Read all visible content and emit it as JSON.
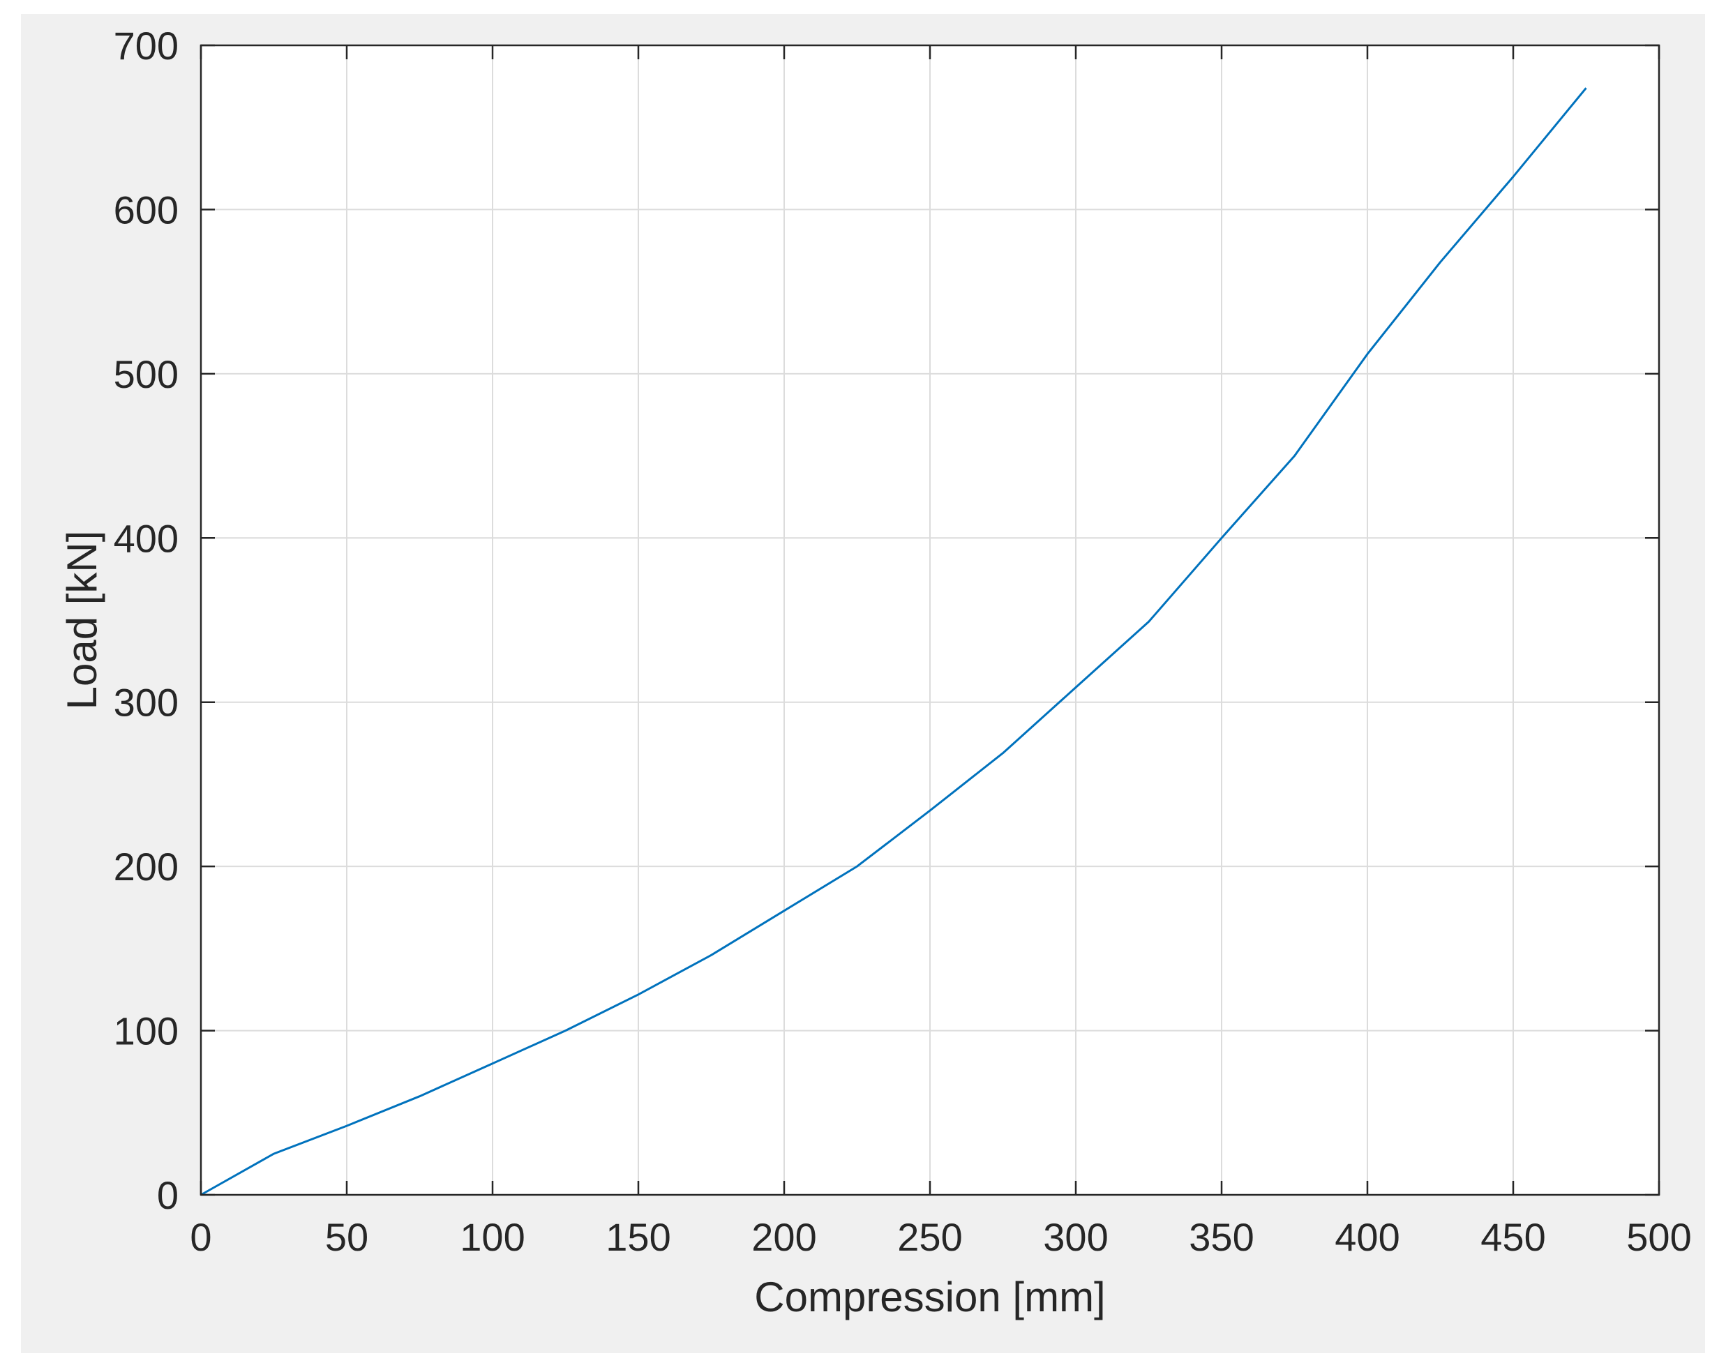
{
  "chart_data": {
    "type": "line",
    "title": "",
    "xlabel": "Compression [mm]",
    "ylabel": "Load [kN]",
    "xlim": [
      0,
      500
    ],
    "ylim": [
      0,
      700
    ],
    "xticks": [
      "0",
      "50",
      "100",
      "150",
      "200",
      "250",
      "300",
      "350",
      "400",
      "450",
      "500"
    ],
    "yticks": [
      "0",
      "100",
      "200",
      "300",
      "400",
      "500",
      "600",
      "700"
    ],
    "grid": true,
    "series": [
      {
        "color": "#0072bd",
        "x": [
          0,
          25,
          50,
          75,
          100,
          125,
          150,
          175,
          200,
          225,
          250,
          275,
          300,
          325,
          350,
          375,
          400,
          425,
          450,
          475
        ],
        "y": [
          0,
          25,
          42,
          60,
          80,
          100,
          122,
          146,
          173,
          200,
          234,
          269,
          309,
          349,
          400,
          450,
          512,
          568,
          620,
          674
        ]
      }
    ]
  }
}
